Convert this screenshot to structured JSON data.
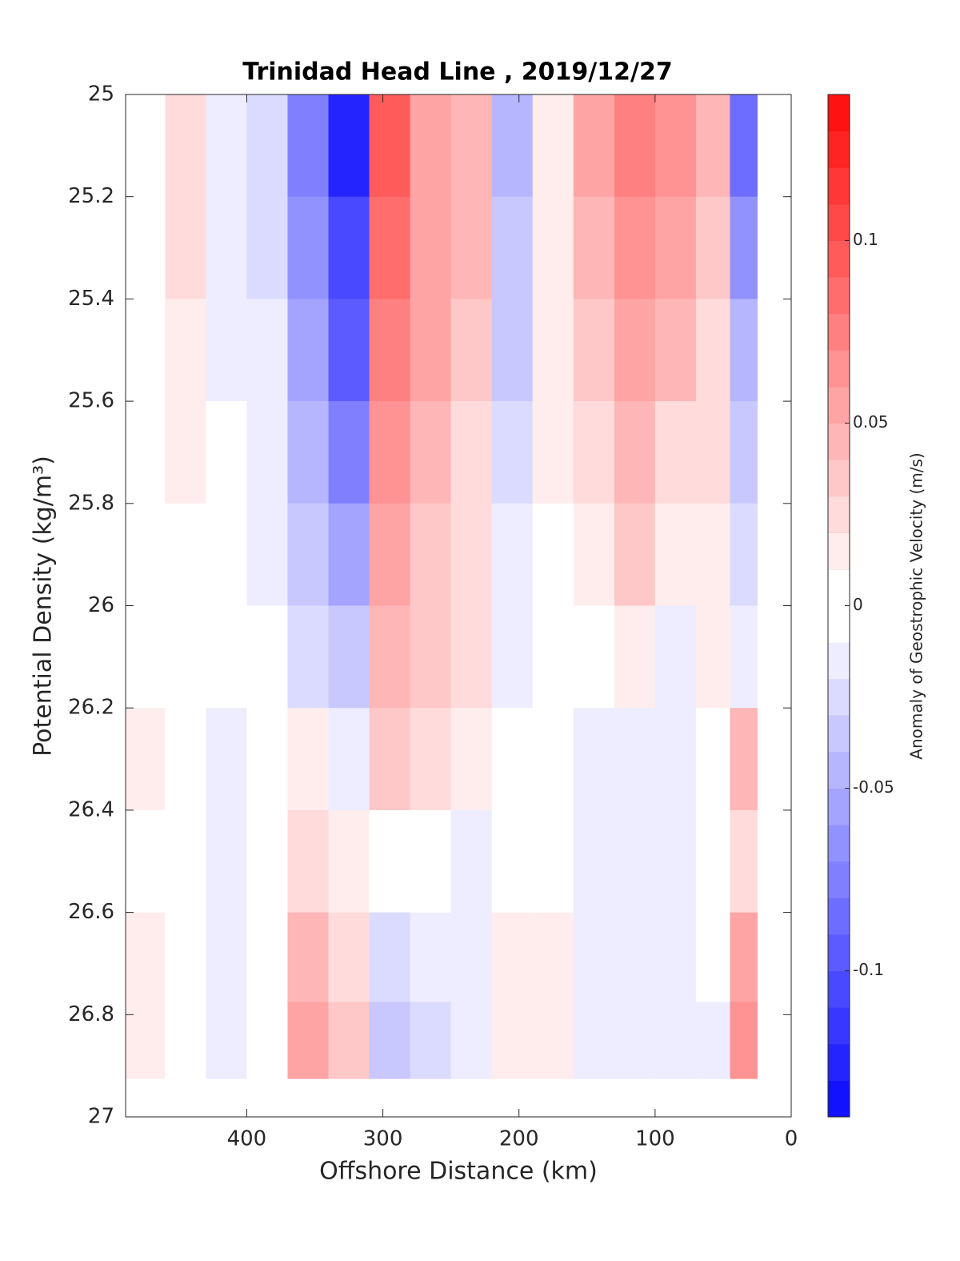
{
  "chart_data": {
    "type": "contourf",
    "title": "Trinidad Head Line , 2019/12/27",
    "xlabel": "Offshore Distance (km)",
    "ylabel": "Potential Density (kg/m³)",
    "colorbar_label": "Anomaly of Geostrophic Velocity (m/s)",
    "x": [
      475,
      445,
      415,
      385,
      355,
      325,
      295,
      265,
      235,
      205,
      175,
      145,
      115,
      85,
      55,
      35
    ],
    "y": [
      25.1,
      25.3,
      25.5,
      25.7,
      25.9,
      26.1,
      26.3,
      26.5,
      26.7,
      26.85
    ],
    "values": [
      [
        0,
        0.02,
        -0.01,
        -0.02,
        -0.07,
        -0.12,
        0.09,
        0.05,
        0.04,
        -0.04,
        0.01,
        0.05,
        0.07,
        0.06,
        0.04,
        -0.08
      ],
      [
        0,
        0.02,
        -0.01,
        -0.02,
        -0.06,
        -0.1,
        0.08,
        0.05,
        0.04,
        -0.03,
        0.01,
        0.04,
        0.06,
        0.05,
        0.03,
        -0.06
      ],
      [
        0,
        0.01,
        -0.01,
        -0.01,
        -0.05,
        -0.09,
        0.07,
        0.05,
        0.03,
        -0.03,
        0.01,
        0.03,
        0.05,
        0.04,
        0.02,
        -0.04
      ],
      [
        0,
        0.01,
        0,
        -0.01,
        -0.04,
        -0.07,
        0.06,
        0.04,
        0.02,
        -0.02,
        0.01,
        0.02,
        0.04,
        0.02,
        0.02,
        -0.03
      ],
      [
        0,
        0,
        0,
        -0.01,
        -0.03,
        -0.05,
        0.05,
        0.03,
        0.02,
        -0.01,
        0,
        0.01,
        0.03,
        0.01,
        0.01,
        -0.02
      ],
      [
        0,
        0,
        0,
        0,
        -0.02,
        -0.03,
        0.04,
        0.03,
        0.02,
        -0.01,
        0,
        0,
        0.01,
        -0.01,
        0.01,
        -0.01
      ],
      [
        0.01,
        0,
        -0.01,
        0,
        0.01,
        -0.01,
        0.03,
        0.02,
        0.01,
        0,
        0,
        -0.01,
        -0.01,
        -0.01,
        0,
        0.04
      ],
      [
        0,
        0,
        -0.01,
        0,
        0.02,
        0.01,
        0,
        0,
        -0.01,
        0,
        0,
        -0.01,
        -0.01,
        -0.01,
        0,
        0.02
      ],
      [
        0.01,
        0,
        -0.01,
        0,
        0.04,
        0.02,
        -0.02,
        -0.01,
        -0.01,
        0.01,
        0.01,
        -0.01,
        -0.01,
        -0.01,
        0,
        0.05
      ],
      [
        0.01,
        0,
        -0.01,
        0,
        0.05,
        0.03,
        -0.03,
        -0.02,
        -0.01,
        0.01,
        0.01,
        -0.01,
        -0.01,
        -0.01,
        -0.01,
        0.06
      ]
    ],
    "xlim": [
      489,
      0
    ],
    "xticks": [
      400,
      300,
      200,
      100,
      0
    ],
    "ylim": [
      27,
      25
    ],
    "yticks": [
      25,
      25.2,
      25.4,
      25.6,
      25.8,
      26,
      26.2,
      26.4,
      26.6,
      26.8,
      27
    ],
    "clim": [
      -0.14,
      0.14
    ],
    "cticks": [
      0.1,
      0.05,
      0,
      -0.05,
      -0.1
    ],
    "level_step": 0.01,
    "colormap": [
      "#0000ff",
      "#ffffff",
      "#ff0000"
    ]
  }
}
